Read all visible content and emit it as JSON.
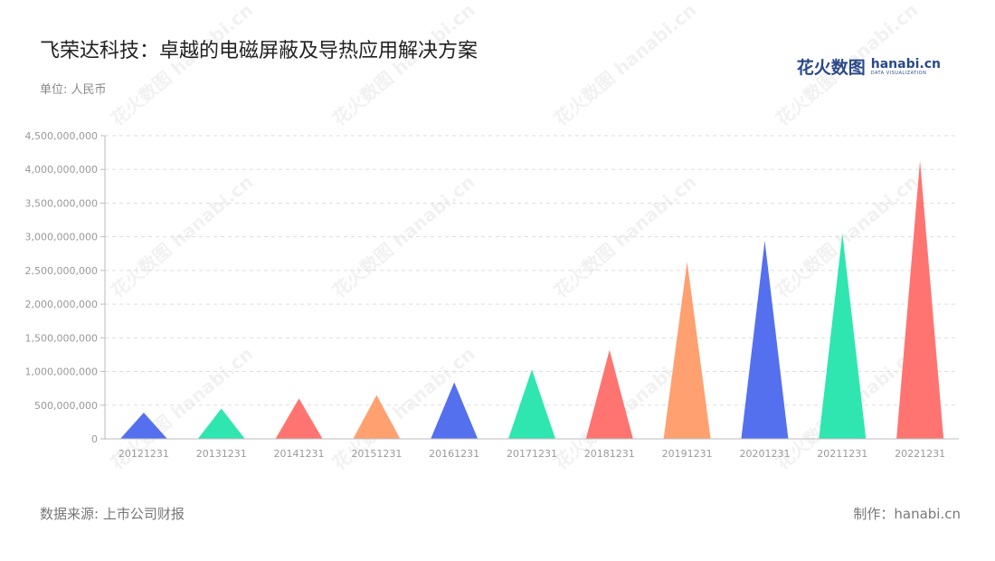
{
  "header": {
    "title": "飞荣达科技：卓越的电磁屏蔽及导热应用解决方案",
    "unit": "单位: 人民币"
  },
  "logo": {
    "cn": "花火数图",
    "en": "hanabi.cn",
    "sub": "DATA VISUALIZATION"
  },
  "footer": {
    "source": "数据来源: 上市公司财报",
    "maker": "制作：hanabi.cn"
  },
  "watermark": "花火数图 hanabi.cn",
  "colors": {
    "palette": [
      "#5470ee",
      "#2fe6b0",
      "#ff7470",
      "#ffa070"
    ],
    "grid": "#dddddd",
    "axis": "#bbbbbb"
  },
  "chart_data": {
    "type": "bar",
    "shape": "triangle",
    "categories": [
      "20121231",
      "20131231",
      "20141231",
      "20151231",
      "20161231",
      "20171231",
      "20181231",
      "20191231",
      "20201231",
      "20211231",
      "20221231"
    ],
    "values": [
      390000000,
      450000000,
      600000000,
      650000000,
      840000000,
      1030000000,
      1320000000,
      2630000000,
      2940000000,
      3050000000,
      4130000000
    ],
    "yticks": [
      "0",
      "500,000,000",
      "1,000,000,000",
      "1,500,000,000",
      "2,000,000,000",
      "2,500,000,000",
      "3,000,000,000",
      "3,500,000,000",
      "4,000,000,000",
      "4,500,000,000"
    ],
    "ylim": [
      0,
      4500000000
    ],
    "grid": true,
    "legend": "none"
  }
}
